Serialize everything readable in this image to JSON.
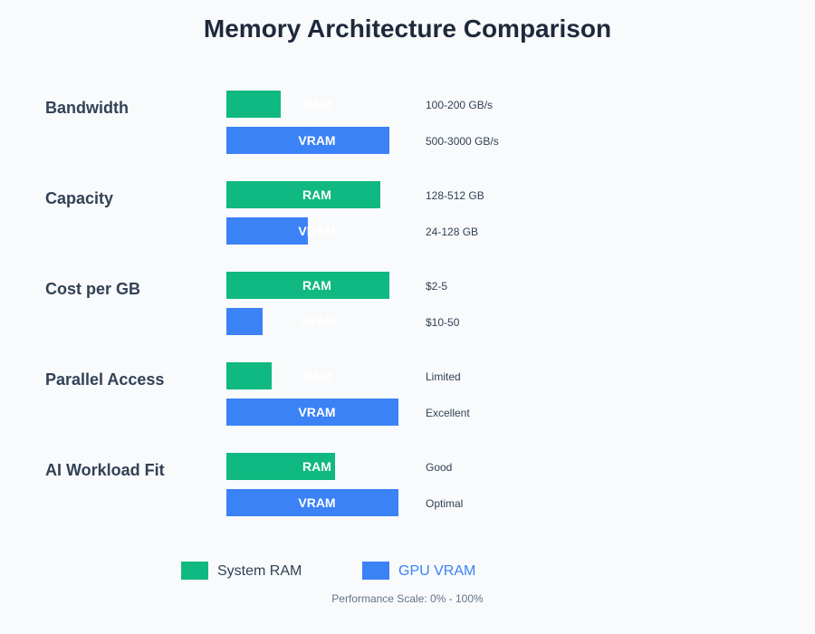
{
  "chart_data": {
    "type": "bar",
    "title": "Memory Architecture Comparison",
    "categories": [
      "Bandwidth",
      "Capacity",
      "Cost per GB",
      "Parallel Access",
      "AI Workload Fit"
    ],
    "series": [
      {
        "name": "System RAM",
        "bar_label": "RAM",
        "color": "#10b981",
        "values": [
          30,
          85,
          90,
          25,
          60
        ],
        "annotations": [
          "100-200 GB/s",
          "128-512 GB",
          "$2-5",
          "Limited",
          "Good"
        ]
      },
      {
        "name": "GPU VRAM",
        "bar_label": "VRAM",
        "color": "#3b82f6",
        "values": [
          90,
          45,
          20,
          95,
          95
        ],
        "annotations": [
          "500-3000 GB/s",
          "24-128 GB",
          "$10-50",
          "Excellent",
          "Optimal"
        ]
      }
    ],
    "xlim": [
      0,
      100
    ],
    "legend_position": "bottom",
    "scale_note": "Performance Scale: 0% - 100%"
  },
  "colors": {
    "background": "#f8fafc",
    "title": "#1e293b",
    "category_label": "#334155",
    "annotation": "#334155",
    "note": "#64748b",
    "legend_ram_text": "#334155",
    "legend_vram_text": "#3b82f6"
  }
}
